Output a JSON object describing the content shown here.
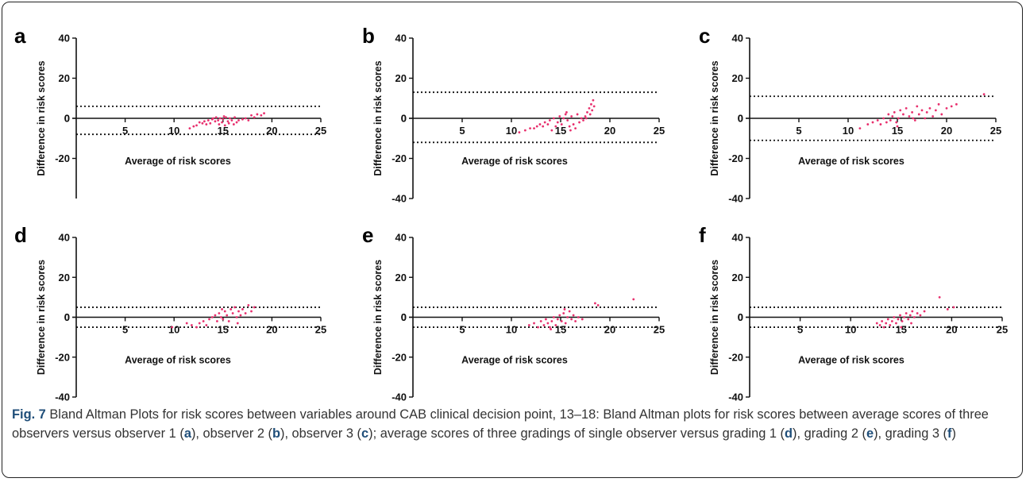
{
  "figure": {
    "caption": {
      "label": "Fig. 7",
      "seg1": " Bland Altman Plots for risk scores between variables around CAB clinical decision point, 13–18: Bland Altman plots for risk scores between average scores of three observers versus observer 1 (",
      "seg2": "), observer 2 (",
      "seg3": "), observer 3 (",
      "seg4": "); average scores of three gradings of single observer versus grading 1 (",
      "seg5": "), grading 2 (",
      "seg6": "), grading 3 (",
      "seg7": ")",
      "ref_a": "a",
      "ref_b": "b",
      "ref_c": "c",
      "ref_d": "d",
      "ref_e": "e",
      "ref_f": "f"
    }
  },
  "colors": {
    "points": "#e8306e",
    "axis": "#111111",
    "limits": "#111111",
    "caption_bold": "#1f4e79"
  },
  "chart_data": [
    {
      "panel": "a",
      "type": "scatter",
      "xlabel": "Average of risk scores",
      "ylabel": "Difference in risk scores",
      "xlim": [
        0,
        25
      ],
      "ylim": [
        -40,
        40
      ],
      "xticks": [
        "5",
        "10",
        "15",
        "20",
        "25"
      ],
      "yticks": [
        "-20",
        "0",
        "20",
        "40"
      ],
      "limits_of_agreement": [
        6,
        -8
      ],
      "points": [
        [
          11.6,
          -5
        ],
        [
          12.0,
          -4
        ],
        [
          12.3,
          -3.5
        ],
        [
          12.6,
          -2
        ],
        [
          12.9,
          -2.5
        ],
        [
          13.1,
          -1.5
        ],
        [
          13.3,
          -3
        ],
        [
          13.5,
          -1
        ],
        [
          13.7,
          -2.5
        ],
        [
          13.9,
          -0.5
        ],
        [
          14.0,
          0
        ],
        [
          14.2,
          -1.5
        ],
        [
          14.3,
          0.5
        ],
        [
          14.5,
          -1
        ],
        [
          14.6,
          -3
        ],
        [
          14.7,
          0
        ],
        [
          14.9,
          -2
        ],
        [
          15.0,
          -0.5
        ],
        [
          15.1,
          1
        ],
        [
          15.2,
          -3.5
        ],
        [
          15.3,
          0.5
        ],
        [
          15.5,
          -1.5
        ],
        [
          15.6,
          -2.5
        ],
        [
          15.7,
          0
        ],
        [
          15.9,
          -1
        ],
        [
          16.1,
          -3
        ],
        [
          16.2,
          0.5
        ],
        [
          16.4,
          -2
        ],
        [
          16.6,
          -1
        ],
        [
          17.0,
          -0.5
        ],
        [
          17.3,
          0
        ],
        [
          17.6,
          -1
        ],
        [
          17.9,
          1.5
        ],
        [
          18.2,
          0.5
        ],
        [
          18.5,
          2
        ],
        [
          18.9,
          1.5
        ],
        [
          19.2,
          2.5
        ]
      ]
    },
    {
      "panel": "b",
      "type": "scatter",
      "xlabel": "Average of risk scores",
      "ylabel": "Difference in risk scores",
      "xlim": [
        0,
        25
      ],
      "ylim": [
        -40,
        40
      ],
      "xticks": [
        "5",
        "10",
        "15",
        "20",
        "25"
      ],
      "yticks": [
        "-40",
        "-20",
        "0",
        "20",
        "40"
      ],
      "limits_of_agreement": [
        13,
        -12
      ],
      "points": [
        [
          10.8,
          -7
        ],
        [
          11.4,
          -6
        ],
        [
          11.9,
          -5
        ],
        [
          12.3,
          -5
        ],
        [
          12.6,
          -4
        ],
        [
          12.9,
          -3
        ],
        [
          13.2,
          -4
        ],
        [
          13.4,
          -2
        ],
        [
          13.7,
          -3
        ],
        [
          13.9,
          -1
        ],
        [
          14.1,
          -6
        ],
        [
          14.3,
          0
        ],
        [
          14.5,
          -4
        ],
        [
          14.7,
          -2
        ],
        [
          14.9,
          1
        ],
        [
          15.1,
          -3
        ],
        [
          15.3,
          0
        ],
        [
          15.5,
          2
        ],
        [
          15.7,
          -1
        ],
        [
          15.9,
          -4
        ],
        [
          16.1,
          1
        ],
        [
          16.3,
          -3
        ],
        [
          16.5,
          -5
        ],
        [
          16.7,
          2
        ],
        [
          16.9,
          -2
        ],
        [
          17.1,
          0
        ],
        [
          17.3,
          -1
        ],
        [
          17.5,
          1
        ],
        [
          17.7,
          3
        ],
        [
          17.9,
          5
        ],
        [
          18.0,
          2
        ],
        [
          18.1,
          7
        ],
        [
          18.2,
          4
        ],
        [
          18.3,
          9
        ],
        [
          18.4,
          6
        ],
        [
          15.6,
          3
        ],
        [
          16.0,
          -6
        ],
        [
          17.6,
          0
        ]
      ]
    },
    {
      "panel": "c",
      "type": "scatter",
      "xlabel": "Average of risk scores",
      "ylabel": "Difference in risk scores",
      "xlim": [
        0,
        25
      ],
      "ylim": [
        -40,
        40
      ],
      "xticks": [
        "5",
        "10",
        "15",
        "20",
        "25"
      ],
      "yticks": [
        "-40",
        "-20",
        "0",
        "20",
        "40"
      ],
      "limits_of_agreement": [
        11,
        -11
      ],
      "points": [
        [
          11.2,
          -5
        ],
        [
          12.0,
          -3
        ],
        [
          12.5,
          -2
        ],
        [
          13.0,
          -1
        ],
        [
          13.3,
          -3
        ],
        [
          13.6,
          0
        ],
        [
          13.9,
          -2
        ],
        [
          14.1,
          2
        ],
        [
          14.3,
          -1
        ],
        [
          14.5,
          1
        ],
        [
          14.7,
          3
        ],
        [
          14.9,
          -2
        ],
        [
          15.1,
          0
        ],
        [
          15.3,
          4
        ],
        [
          15.6,
          2
        ],
        [
          15.9,
          5
        ],
        [
          16.2,
          1
        ],
        [
          16.5,
          3
        ],
        [
          16.8,
          -1
        ],
        [
          17.0,
          6
        ],
        [
          17.2,
          2
        ],
        [
          17.5,
          4
        ],
        [
          17.8,
          0
        ],
        [
          18.0,
          3
        ],
        [
          18.3,
          5
        ],
        [
          18.6,
          1
        ],
        [
          18.9,
          4
        ],
        [
          19.2,
          7
        ],
        [
          19.5,
          2
        ],
        [
          20.0,
          5
        ],
        [
          20.5,
          6
        ],
        [
          21.0,
          7
        ],
        [
          23.8,
          12
        ],
        [
          15.0,
          -4
        ],
        [
          16.6,
          0
        ]
      ]
    },
    {
      "panel": "d",
      "type": "scatter",
      "xlabel": "Average of risk scores",
      "ylabel": "Difference in risk scores",
      "xlim": [
        0,
        25
      ],
      "ylim": [
        -40,
        40
      ],
      "xticks": [
        "5",
        "10",
        "15",
        "20",
        "25"
      ],
      "yticks": [
        "-40",
        "-20",
        "0",
        "20",
        "40"
      ],
      "limits_of_agreement": [
        5,
        -5
      ],
      "points": [
        [
          9.8,
          -5
        ],
        [
          11.3,
          -3
        ],
        [
          11.8,
          -4
        ],
        [
          12.3,
          -5
        ],
        [
          12.6,
          -3
        ],
        [
          13.0,
          -2
        ],
        [
          13.3,
          -4
        ],
        [
          13.6,
          -1
        ],
        [
          13.9,
          0
        ],
        [
          14.2,
          1
        ],
        [
          14.4,
          -2
        ],
        [
          14.6,
          2
        ],
        [
          14.8,
          0
        ],
        [
          15.0,
          -1
        ],
        [
          15.2,
          3
        ],
        [
          15.4,
          1
        ],
        [
          15.6,
          -2
        ],
        [
          15.8,
          4
        ],
        [
          16.0,
          2
        ],
        [
          16.2,
          5
        ],
        [
          16.4,
          0
        ],
        [
          16.6,
          3
        ],
        [
          16.8,
          1
        ],
        [
          17.0,
          4
        ],
        [
          17.3,
          2
        ],
        [
          17.6,
          6
        ],
        [
          17.9,
          3
        ],
        [
          18.2,
          5
        ],
        [
          14.9,
          4
        ],
        [
          16.5,
          -3
        ]
      ]
    },
    {
      "panel": "e",
      "type": "scatter",
      "xlabel": "Average of  risk scores",
      "ylabel": "Difference in risk scores",
      "xlim": [
        0,
        25
      ],
      "ylim": [
        -40,
        40
      ],
      "xticks": [
        "5",
        "10",
        "15",
        "20",
        "25"
      ],
      "yticks": [
        "-40",
        "-20",
        "0",
        "20",
        "40"
      ],
      "limits_of_agreement": [
        5,
        -5
      ],
      "points": [
        [
          11.8,
          -4
        ],
        [
          12.3,
          -3
        ],
        [
          12.7,
          -5
        ],
        [
          13.0,
          -2
        ],
        [
          13.3,
          -4
        ],
        [
          13.5,
          -1
        ],
        [
          13.7,
          -3
        ],
        [
          13.9,
          -5
        ],
        [
          14.1,
          -2
        ],
        [
          14.3,
          0
        ],
        [
          14.5,
          -4
        ],
        [
          14.7,
          -1
        ],
        [
          14.9,
          1
        ],
        [
          15.1,
          -2
        ],
        [
          15.3,
          2
        ],
        [
          15.5,
          -3
        ],
        [
          15.7,
          0
        ],
        [
          15.9,
          3
        ],
        [
          16.1,
          -1
        ],
        [
          16.3,
          1
        ],
        [
          16.5,
          -2
        ],
        [
          16.8,
          0
        ],
        [
          17.2,
          -1
        ],
        [
          18.5,
          7
        ],
        [
          18.8,
          6
        ],
        [
          22.4,
          9
        ],
        [
          14.0,
          -6
        ],
        [
          15.4,
          4
        ]
      ]
    },
    {
      "panel": "f",
      "type": "scatter",
      "xlabel": "Average of  risk scores",
      "ylabel": "Difference in risk scores",
      "xlim": [
        0,
        25
      ],
      "ylim": [
        -40,
        40
      ],
      "xticks": [
        "5",
        "10",
        "15",
        "20",
        "25"
      ],
      "yticks": [
        "-40",
        "-20",
        "0",
        "20",
        "40"
      ],
      "limits_of_agreement": [
        5,
        -5
      ],
      "points": [
        [
          12.6,
          -3
        ],
        [
          12.9,
          -4
        ],
        [
          13.1,
          -2
        ],
        [
          13.3,
          -5
        ],
        [
          13.5,
          -3
        ],
        [
          13.7,
          -1
        ],
        [
          13.9,
          -4
        ],
        [
          14.1,
          -2
        ],
        [
          14.3,
          0
        ],
        [
          14.5,
          -3
        ],
        [
          14.7,
          -1
        ],
        [
          14.9,
          1
        ],
        [
          15.1,
          -2
        ],
        [
          15.3,
          0
        ],
        [
          15.5,
          2
        ],
        [
          15.7,
          -1
        ],
        [
          15.9,
          1
        ],
        [
          16.1,
          3
        ],
        [
          16.3,
          0
        ],
        [
          16.6,
          2
        ],
        [
          16.9,
          1
        ],
        [
          17.3,
          3
        ],
        [
          18.8,
          10
        ],
        [
          19.6,
          4
        ],
        [
          20.2,
          5
        ],
        [
          15.0,
          -5
        ],
        [
          16.0,
          -3
        ]
      ]
    }
  ]
}
